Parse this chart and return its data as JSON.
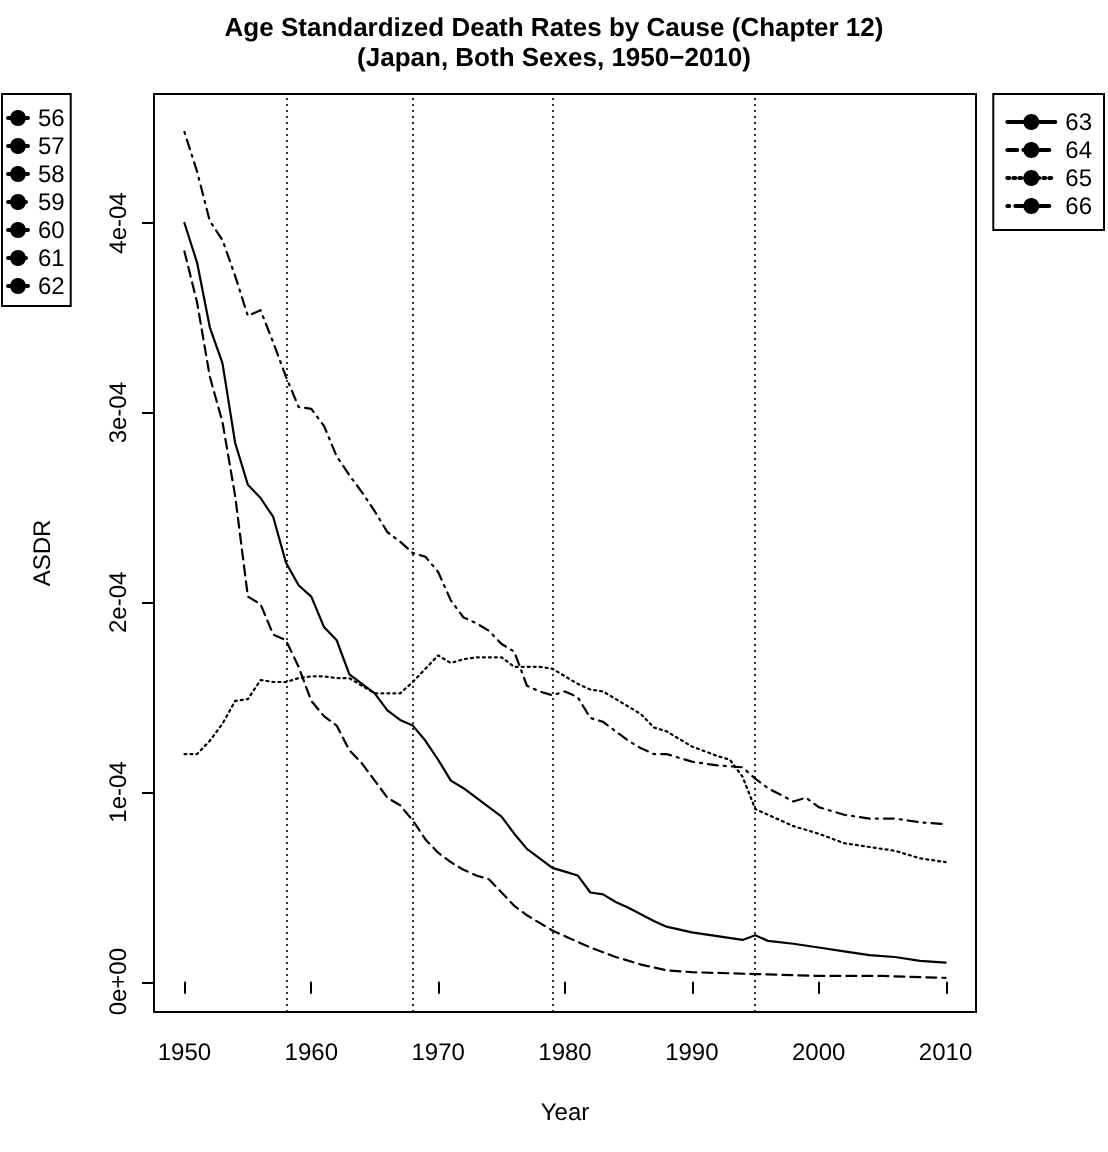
{
  "chart_data": {
    "type": "line",
    "title": "Age Standardized Death Rates by Cause (Chapter 12)",
    "subtitle": "(Japan, Both Sexes, 1950−2010)",
    "xlabel": "Year",
    "ylabel": "ASDR",
    "xlim": [
      1947.6,
      2012.4
    ],
    "xticks": [
      1950,
      1960,
      1970,
      1980,
      1990,
      2000,
      2010
    ],
    "ylim": [
      -1.6e-05,
      0.000468
    ],
    "yticks": [
      {
        "value": 0,
        "label": "0e+00"
      },
      {
        "value": 0.0001,
        "label": "1e-04"
      },
      {
        "value": 0.0002,
        "label": "2e-04"
      },
      {
        "value": 0.0003,
        "label": "3e-04"
      },
      {
        "value": 0.0004,
        "label": "4e-04"
      }
    ],
    "grid": false,
    "legend": "right",
    "marker": "none",
    "ref_lines": [
      {
        "axis": "x",
        "value": 1958,
        "line_style": "dotted",
        "color": "#000000"
      },
      {
        "axis": "x",
        "value": 1968,
        "line_style": "dotted",
        "color": "#000000"
      },
      {
        "axis": "x",
        "value": 1979,
        "line_style": "dotted",
        "color": "#000000"
      },
      {
        "axis": "x",
        "value": 1995,
        "line_style": "dotted",
        "color": "#000000"
      }
    ],
    "series": [
      {
        "name": "56",
        "color": "#000000",
        "line_style": "solid",
        "values": [
          null
        ]
      },
      {
        "name": "57",
        "color": "#000000",
        "line_style": "dashed",
        "values": [
          null
        ]
      },
      {
        "name": "58",
        "color": "#000000",
        "line_style": "dotted",
        "values": [
          null
        ]
      },
      {
        "name": "59",
        "color": "#000000",
        "line_style": "dashdot",
        "values": [
          null
        ]
      },
      {
        "name": "60",
        "color": "#000000",
        "line_style": "dashed",
        "values": [
          null
        ]
      },
      {
        "name": "61",
        "color": "#000000",
        "line_style": "dashdot",
        "values": [
          null
        ]
      },
      {
        "name": "62",
        "color": "#000000",
        "line_style": "dotted",
        "values": [
          null
        ]
      },
      {
        "name": "63",
        "color": "#000000",
        "line_style": "solid",
        "x": [
          1950,
          1951,
          1952,
          1953,
          1954,
          1955,
          1956,
          1957,
          1958,
          1959,
          1960,
          1961,
          1962,
          1963,
          1964,
          1965,
          1966,
          1967,
          1968,
          1969,
          1970,
          1971,
          1972,
          1973,
          1974,
          1975,
          1976,
          1977,
          1978,
          1979,
          1980,
          1981,
          1982,
          1983,
          1984,
          1985,
          1987,
          1988,
          1990,
          1992,
          1994,
          1995,
          1996,
          1998,
          2000,
          2002,
          2004,
          2006,
          2008,
          2010
        ],
        "values": [
          0.0004,
          0.000379,
          0.000345,
          0.000326,
          0.000284,
          0.000262,
          0.000255,
          0.000245,
          0.000221,
          0.000209,
          0.000203,
          0.000187,
          0.00018,
          0.000162,
          0.000157,
          0.000152,
          0.000143,
          0.000138,
          0.000135,
          0.000127,
          0.000117,
          0.000106,
          0.000102,
          9.7e-05,
          9.2e-05,
          8.7e-05,
          7.8e-05,
          7e-05,
          6.5e-05,
          6e-05,
          5.8e-05,
          5.6e-05,
          4.7e-05,
          4.6e-05,
          4.2e-05,
          3.9e-05,
          3.2e-05,
          2.9e-05,
          2.6e-05,
          2.4e-05,
          2.2e-05,
          2.45e-05,
          2.15e-05,
          2e-05,
          1.8e-05,
          1.6e-05,
          1.4e-05,
          1.3e-05,
          1.1e-05,
          1e-05
        ]
      },
      {
        "name": "64",
        "color": "#000000",
        "line_style": "dashed",
        "x": [
          1950,
          1951,
          1952,
          1953,
          1954,
          1955,
          1956,
          1957,
          1958,
          1959,
          1960,
          1961,
          1962,
          1963,
          1964,
          1965,
          1966,
          1967,
          1968,
          1969,
          1970,
          1971,
          1972,
          1973,
          1974,
          1975,
          1976,
          1977,
          1978,
          1979,
          1980,
          1982,
          1984,
          1986,
          1988,
          1990,
          1995,
          2000,
          2005,
          2010
        ],
        "values": [
          0.000385,
          0.000358,
          0.000319,
          0.000295,
          0.000256,
          0.000203,
          0.000199,
          0.000183,
          0.00018,
          0.000166,
          0.000148,
          0.00014,
          0.000135,
          0.000122,
          0.000115,
          0.000106,
          9.7e-05,
          9.3e-05,
          8.5e-05,
          7.5e-05,
          6.8e-05,
          6.3e-05,
          5.9e-05,
          5.6e-05,
          5.4e-05,
          4.7e-05,
          4e-05,
          3.5e-05,
          3.1e-05,
          2.7e-05,
          2.4e-05,
          1.8e-05,
          1.3e-05,
          9e-06,
          6e-06,
          5e-06,
          4e-06,
          3e-06,
          3e-06,
          2e-06
        ]
      },
      {
        "name": "65",
        "color": "#000000",
        "line_style": "dotted",
        "x": [
          1950,
          1951,
          1952,
          1953,
          1954,
          1955,
          1956,
          1957,
          1958,
          1959,
          1960,
          1961,
          1962,
          1963,
          1964,
          1965,
          1966,
          1967,
          1968,
          1969,
          1970,
          1971,
          1972,
          1973,
          1974,
          1975,
          1976,
          1977,
          1978,
          1979,
          1980,
          1981,
          1982,
          1983,
          1984,
          1985,
          1986,
          1987,
          1988,
          1990,
          1992,
          1993,
          1994,
          1995,
          1996,
          1998,
          2000,
          2002,
          2004,
          2006,
          2008,
          2010
        ],
        "values": [
          0.00012,
          0.00012,
          0.000127,
          0.000136,
          0.000148,
          0.000149,
          0.000159,
          0.000158,
          0.000158,
          0.00016,
          0.000161,
          0.000161,
          0.00016,
          0.00016,
          0.000156,
          0.000152,
          0.000152,
          0.000152,
          0.000158,
          0.000165,
          0.000172,
          0.000168,
          0.00017,
          0.000171,
          0.000171,
          0.000171,
          0.000166,
          0.000166,
          0.000166,
          0.000165,
          0.000161,
          0.000157,
          0.000154,
          0.000153,
          0.000149,
          0.000145,
          0.000141,
          0.000134,
          0.000132,
          0.000124,
          0.000119,
          0.000117,
          0.000108,
          9.1e-05,
          8.8e-05,
          8.2e-05,
          7.8e-05,
          7.3e-05,
          7.1e-05,
          6.9e-05,
          6.5e-05,
          6.3e-05
        ]
      },
      {
        "name": "66",
        "color": "#000000",
        "line_style": "dashdot",
        "x": [
          1950,
          1951,
          1952,
          1953,
          1954,
          1955,
          1956,
          1957,
          1958,
          1959,
          1960,
          1961,
          1962,
          1963,
          1964,
          1965,
          1966,
          1967,
          1968,
          1969,
          1970,
          1971,
          1972,
          1973,
          1974,
          1975,
          1976,
          1977,
          1978,
          1979,
          1980,
          1981,
          1982,
          1983,
          1984,
          1985,
          1986,
          1987,
          1988,
          1990,
          1992,
          1994,
          1995,
          1996,
          1998,
          1999,
          2000,
          2002,
          2004,
          2006,
          2008,
          2010
        ],
        "values": [
          0.000448,
          0.000427,
          0.000401,
          0.000391,
          0.000372,
          0.000351,
          0.000354,
          0.000337,
          0.000319,
          0.000303,
          0.000302,
          0.000293,
          0.000277,
          0.000267,
          0.000258,
          0.000248,
          0.000237,
          0.000232,
          0.000226,
          0.000224,
          0.000216,
          0.000201,
          0.000192,
          0.000189,
          0.000185,
          0.000178,
          0.000174,
          0.000156,
          0.000153,
          0.000151,
          0.000153,
          0.00015,
          0.000139,
          0.000137,
          0.000132,
          0.000127,
          0.000123,
          0.00012,
          0.00012,
          0.000116,
          0.000114,
          0.000113,
          0.000107,
          0.000102,
          9.5e-05,
          9.7e-05,
          9.2e-05,
          8.8e-05,
          8.6e-05,
          8.6e-05,
          8.4e-05,
          8.3e-05
        ]
      }
    ]
  }
}
